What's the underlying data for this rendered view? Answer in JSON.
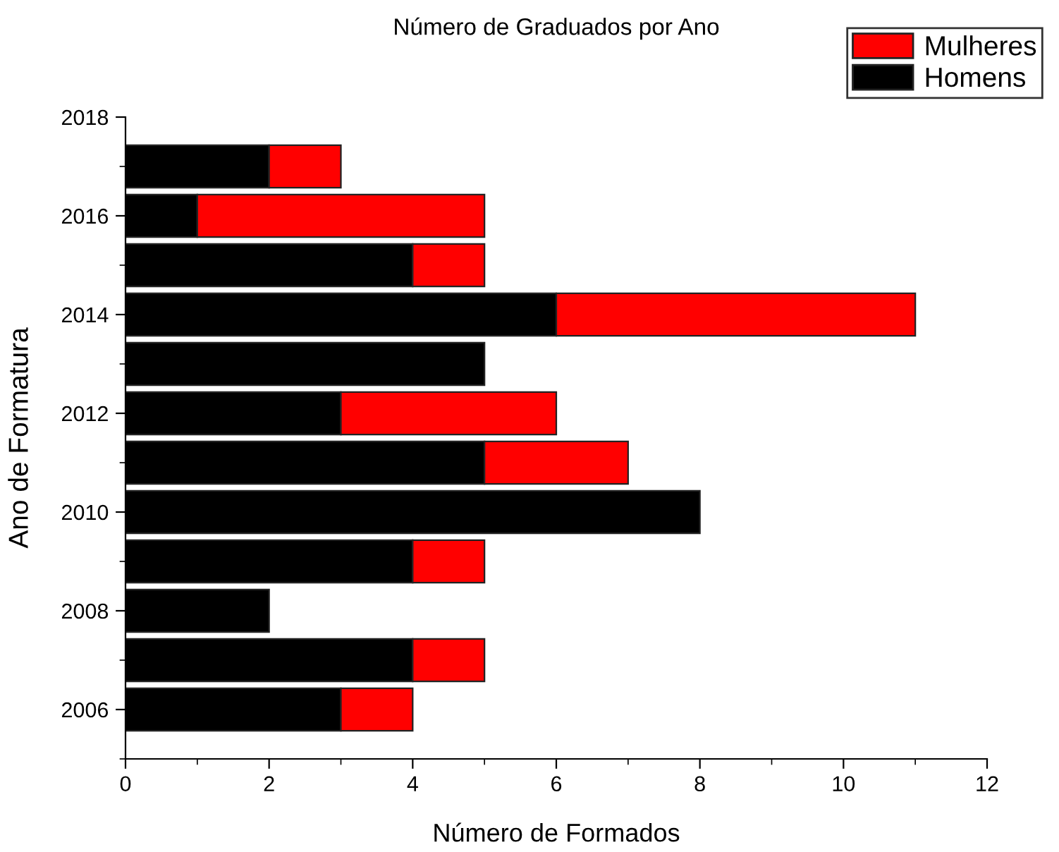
{
  "chart_data": {
    "type": "bar",
    "orientation": "horizontal",
    "stacked": true,
    "title": "Número de Graduados por Ano",
    "xlabel": "Número de Formados",
    "ylabel": "Ano de Formatura",
    "x": [
      2006,
      2007,
      2008,
      2009,
      2010,
      2011,
      2012,
      2013,
      2014,
      2015,
      2016,
      2017
    ],
    "series": [
      {
        "name": "Homens",
        "color": "#000000",
        "values": [
          3,
          4,
          2,
          4,
          8,
          5,
          3,
          5,
          6,
          4,
          1,
          2
        ]
      },
      {
        "name": "Mulheres",
        "color": "#ff0000",
        "values": [
          1,
          1,
          null,
          1,
          null,
          2,
          3,
          null,
          5,
          1,
          4,
          1
        ]
      }
    ],
    "xlim": [
      0,
      12
    ],
    "xticks": [
      0,
      2,
      4,
      6,
      8,
      10,
      12
    ],
    "ylim": [
      2005,
      2018
    ],
    "yticks": [
      2006,
      2008,
      2010,
      2012,
      2014,
      2016,
      2018
    ],
    "grid": false,
    "legend": "top right"
  }
}
